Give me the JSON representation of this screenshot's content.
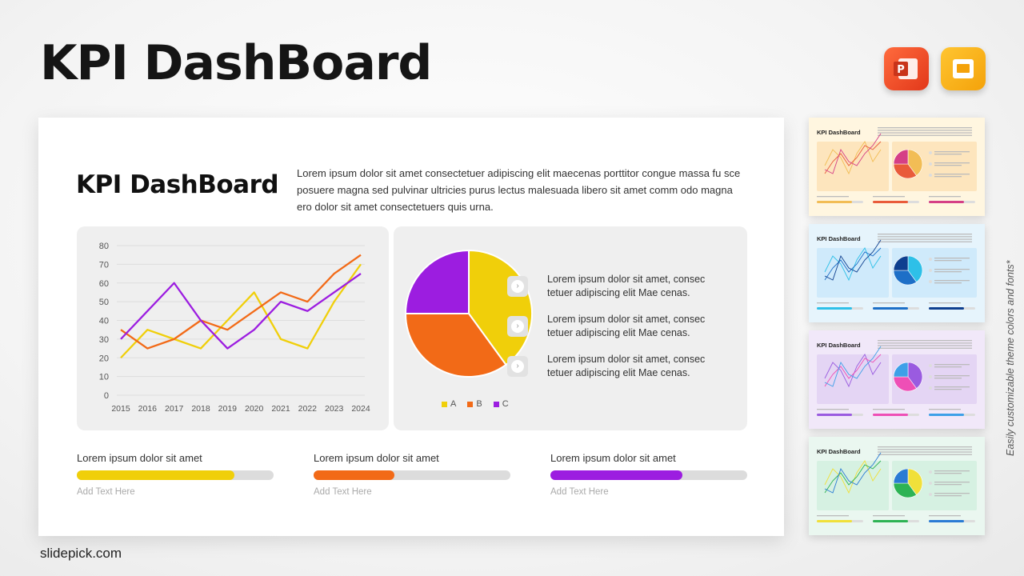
{
  "header": {
    "title": "KPI DashBoard"
  },
  "apps": [
    {
      "name": "powerpoint-icon",
      "color": "#e94b27"
    },
    {
      "name": "google-slides-icon",
      "color": "#f8b316"
    }
  ],
  "slide": {
    "title": "KPI DashBoard",
    "description": "Lorem ipsum dolor sit amet consectetuer adipiscing elit maecenas porttitor congue massa fu sce posuere magna sed pulvinar ultricies purus lectus malesuada libero sit amet comm odo magna ero dolor sit amet consectetuers quis urna.",
    "bullets": [
      "Lorem ipsum dolor sit amet, consec tetuer adipiscing elit Mae cenas.",
      "Lorem ipsum dolor sit amet, consec tetuer adipiscing elit Mae cenas.",
      "Lorem ipsum dolor sit amet, consec tetuer adipiscing elit Mae cenas."
    ],
    "progress": [
      {
        "label": "Lorem ipsum dolor sit amet",
        "sub": "Add Text Here",
        "value": 0.8,
        "color": "#f0cf0a"
      },
      {
        "label": "Lorem ipsum dolor sit amet",
        "sub": "Add Text Here",
        "value": 0.41,
        "color": "#f26a17"
      },
      {
        "label": "Lorem ipsum dolor sit amet",
        "sub": "Add Text Here",
        "value": 0.67,
        "color": "#9c1de0"
      }
    ]
  },
  "chart_data": [
    {
      "type": "line",
      "x": [
        "2015",
        "2016",
        "2017",
        "2018",
        "2019",
        "2020",
        "2021",
        "2022",
        "2023",
        "2024"
      ],
      "ylim": [
        0,
        80
      ],
      "yticks": [
        0,
        10,
        20,
        30,
        40,
        50,
        60,
        70,
        80
      ],
      "grid": true,
      "series": [
        {
          "color": "#f0cf0a",
          "values": [
            20,
            35,
            30,
            25,
            40,
            55,
            30,
            25,
            50,
            70
          ]
        },
        {
          "color": "#f26a17",
          "values": [
            35,
            25,
            30,
            40,
            35,
            45,
            55,
            50,
            65,
            75
          ]
        },
        {
          "color": "#9c1de0",
          "values": [
            30,
            45,
            60,
            40,
            25,
            35,
            50,
            45,
            55,
            65
          ]
        }
      ]
    },
    {
      "type": "pie",
      "legend": "bottom",
      "slices": [
        {
          "label": "A",
          "value": 40,
          "color": "#f0cf0a"
        },
        {
          "label": "B",
          "value": 35,
          "color": "#f26a17"
        },
        {
          "label": "C",
          "value": 25,
          "color": "#9c1de0"
        }
      ]
    }
  ],
  "thumbnails": [
    {
      "title": "KPI DashBoard",
      "bg": "#fff6e0",
      "panel": "#fde5bd",
      "colors": [
        "#f2bd55",
        "#e95b3a",
        "#d53f86"
      ]
    },
    {
      "title": "KPI DashBoard",
      "bg": "#e6f4fc",
      "panel": "#cfeafb",
      "colors": [
        "#2ec0e8",
        "#1d6fc7",
        "#0e3f8f"
      ]
    },
    {
      "title": "KPI DashBoard",
      "bg": "#f1e8f9",
      "panel": "#e4d5f4",
      "colors": [
        "#9a5be0",
        "#ee4fb6",
        "#3ea0e8"
      ]
    },
    {
      "title": "KPI DashBoard",
      "bg": "#eaf7f0",
      "panel": "#d6f1e2",
      "colors": [
        "#f0e03a",
        "#2db354",
        "#2a7bd4"
      ]
    }
  ],
  "side_note": "Easily customizable theme colors and fonts*",
  "footer": "slidepick.com"
}
